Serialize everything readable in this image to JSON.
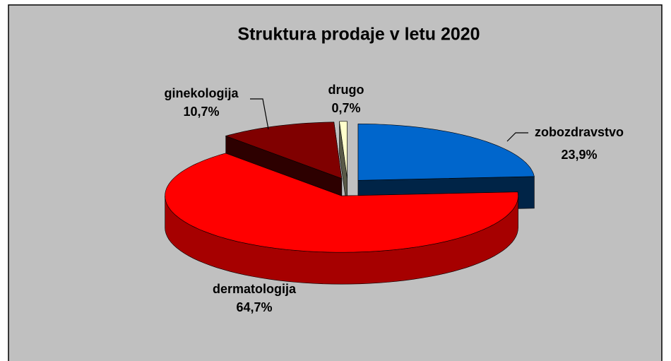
{
  "chart_data": {
    "type": "pie3d",
    "title": "Struktura prodaje v letu 2020",
    "categories": [
      "zobozdravstvo",
      "dermatologija",
      "ginekologija",
      "drugo"
    ],
    "values": [
      23.9,
      64.7,
      10.7,
      0.7
    ],
    "value_labels": [
      "23,9%",
      "64,7%",
      "10,7%",
      "0,7%"
    ],
    "colors": [
      "#0066cc",
      "#ff0000",
      "#800000",
      "#ffffcc"
    ]
  }
}
